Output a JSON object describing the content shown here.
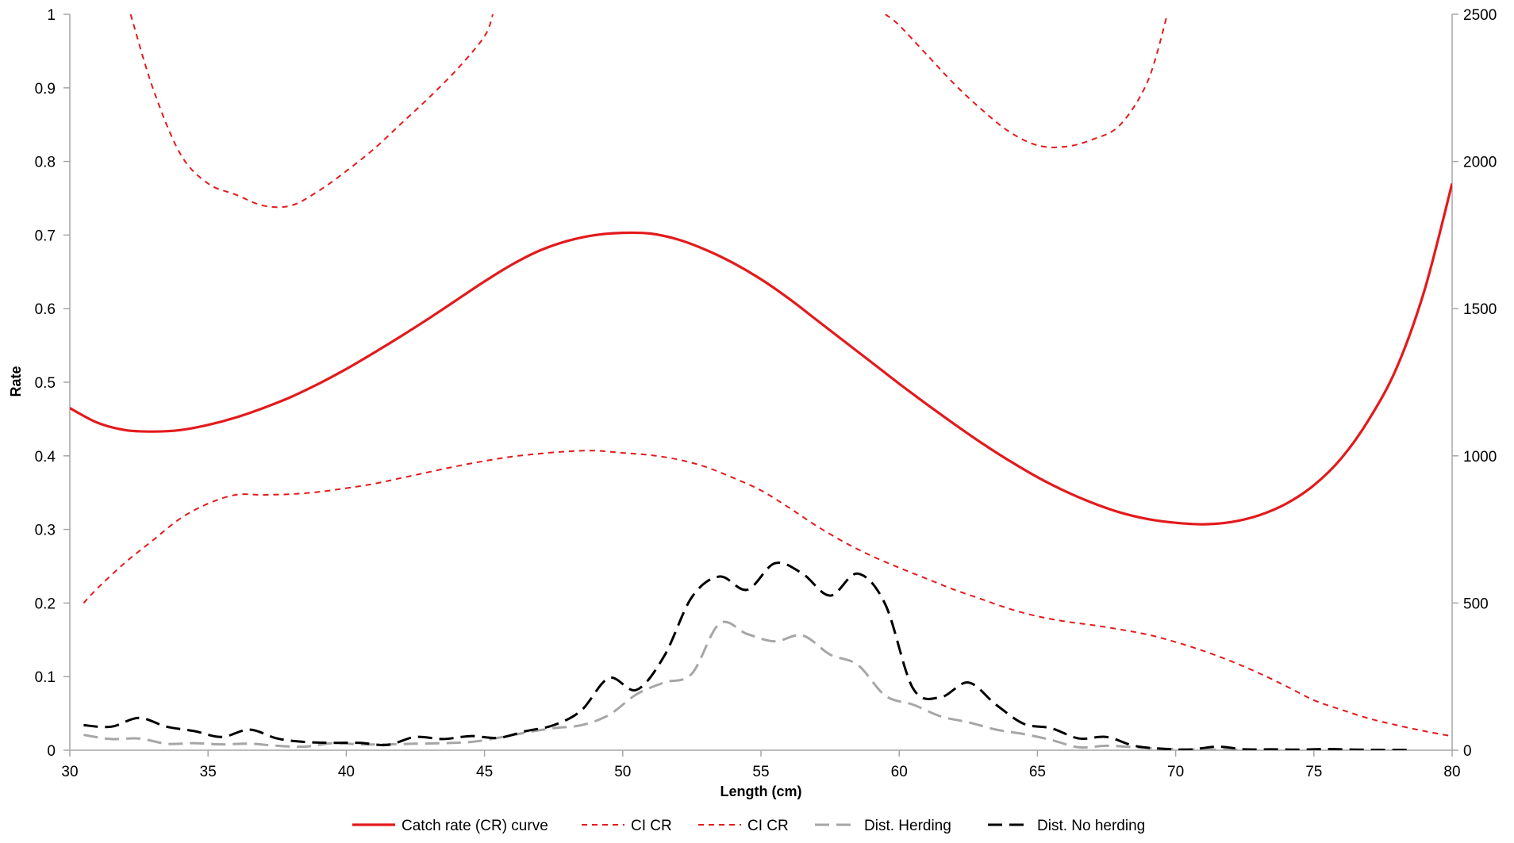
{
  "chart_data": {
    "type": "line",
    "title": "",
    "xlabel": "Length (cm)",
    "ylabel": "Rate",
    "y2label": "",
    "xlim": [
      30,
      80
    ],
    "ylim": [
      0,
      1
    ],
    "y2lim": [
      0,
      2500
    ],
    "grid": false,
    "legend_position": "bottom",
    "x_ticks": [
      "30",
      "35",
      "40",
      "45",
      "50",
      "55",
      "60",
      "65",
      "70",
      "75",
      "80"
    ],
    "y_ticks": [
      "0",
      "0.1",
      "0.2",
      "0.3",
      "0.4",
      "0.5",
      "0.6",
      "0.7",
      "0.8",
      "0.9",
      "1"
    ],
    "y2_ticks": [
      "0",
      "500",
      "1000",
      "1500",
      "2000",
      "2500"
    ],
    "series": [
      {
        "name": "Catch rate (CR) curve",
        "axis": "left",
        "color": "#e31a1c",
        "style": "solid",
        "points": [
          [
            30,
            0.465
          ],
          [
            31,
            0.445
          ],
          [
            32,
            0.435
          ],
          [
            33,
            0.433
          ],
          [
            34,
            0.435
          ],
          [
            35,
            0.442
          ],
          [
            36,
            0.452
          ],
          [
            37,
            0.465
          ],
          [
            38,
            0.48
          ],
          [
            39,
            0.498
          ],
          [
            40,
            0.518
          ],
          [
            41,
            0.54
          ],
          [
            42,
            0.563
          ],
          [
            43,
            0.587
          ],
          [
            44,
            0.612
          ],
          [
            45,
            0.637
          ],
          [
            46,
            0.66
          ],
          [
            47,
            0.679
          ],
          [
            48,
            0.692
          ],
          [
            49,
            0.7
          ],
          [
            50,
            0.703
          ],
          [
            51,
            0.702
          ],
          [
            52,
            0.694
          ],
          [
            53,
            0.68
          ],
          [
            54,
            0.662
          ],
          [
            55,
            0.64
          ],
          [
            56,
            0.614
          ],
          [
            57,
            0.585
          ],
          [
            58,
            0.556
          ],
          [
            59,
            0.527
          ],
          [
            60,
            0.498
          ],
          [
            61,
            0.47
          ],
          [
            62,
            0.443
          ],
          [
            63,
            0.417
          ],
          [
            64,
            0.393
          ],
          [
            65,
            0.371
          ],
          [
            66,
            0.352
          ],
          [
            67,
            0.336
          ],
          [
            68,
            0.323
          ],
          [
            69,
            0.314
          ],
          [
            70,
            0.309
          ],
          [
            71,
            0.307
          ],
          [
            72,
            0.31
          ],
          [
            73,
            0.319
          ],
          [
            74,
            0.335
          ],
          [
            75,
            0.36
          ],
          [
            76,
            0.397
          ],
          [
            77,
            0.45
          ],
          [
            78,
            0.52
          ],
          [
            79,
            0.625
          ],
          [
            80,
            0.77
          ]
        ]
      },
      {
        "name": "CI CR",
        "axis": "left",
        "color": "#e31a1c",
        "style": "short-dash",
        "points": [
          [
            30.5,
            0.2
          ],
          [
            31,
            0.22
          ],
          [
            32,
            0.255
          ],
          [
            33,
            0.285
          ],
          [
            34,
            0.315
          ],
          [
            35,
            0.335
          ],
          [
            36,
            0.347
          ],
          [
            37,
            0.347
          ],
          [
            38,
            0.348
          ],
          [
            39,
            0.351
          ],
          [
            40,
            0.356
          ],
          [
            41,
            0.362
          ],
          [
            42,
            0.37
          ],
          [
            43,
            0.378
          ],
          [
            44,
            0.386
          ],
          [
            45,
            0.393
          ],
          [
            46,
            0.399
          ],
          [
            47,
            0.403
          ],
          [
            48,
            0.406
          ],
          [
            49,
            0.407
          ],
          [
            50,
            0.404
          ],
          [
            51,
            0.401
          ],
          [
            52,
            0.395
          ],
          [
            53,
            0.385
          ],
          [
            54,
            0.37
          ],
          [
            55,
            0.353
          ],
          [
            56,
            0.33
          ],
          [
            57,
            0.305
          ],
          [
            58,
            0.283
          ],
          [
            59,
            0.264
          ],
          [
            60,
            0.248
          ],
          [
            61,
            0.233
          ],
          [
            62,
            0.218
          ],
          [
            63,
            0.205
          ],
          [
            64,
            0.192
          ],
          [
            65,
            0.182
          ],
          [
            66,
            0.175
          ],
          [
            67,
            0.17
          ],
          [
            68,
            0.164
          ],
          [
            69,
            0.157
          ],
          [
            70,
            0.147
          ],
          [
            71,
            0.135
          ],
          [
            72,
            0.121
          ],
          [
            73,
            0.105
          ],
          [
            74,
            0.087
          ],
          [
            75,
            0.068
          ],
          [
            76,
            0.055
          ],
          [
            77,
            0.043
          ],
          [
            78,
            0.034
          ],
          [
            79,
            0.026
          ],
          [
            80,
            0.019
          ]
        ]
      },
      {
        "name": "CI CR",
        "axis": "left",
        "color": "#e31a1c",
        "style": "short-dash",
        "segments": [
          [
            [
              32.2,
              1.0
            ],
            [
              33,
              0.9
            ],
            [
              34,
              0.81
            ],
            [
              35,
              0.77
            ],
            [
              36,
              0.755
            ],
            [
              37,
              0.74
            ],
            [
              38,
              0.74
            ],
            [
              39,
              0.76
            ],
            [
              40,
              0.787
            ],
            [
              41,
              0.817
            ],
            [
              42,
              0.852
            ],
            [
              43,
              0.887
            ],
            [
              44,
              0.925
            ],
            [
              45,
              0.97
            ],
            [
              45.3,
              1.0
            ]
          ],
          [
            [
              59.5,
              1.0
            ],
            [
              60,
              0.985
            ],
            [
              61,
              0.945
            ],
            [
              62,
              0.905
            ],
            [
              63,
              0.87
            ],
            [
              64,
              0.84
            ],
            [
              65,
              0.822
            ],
            [
              66,
              0.82
            ],
            [
              67,
              0.83
            ],
            [
              68,
              0.85
            ],
            [
              69,
              0.91
            ],
            [
              69.7,
              1.0
            ]
          ]
        ]
      },
      {
        "name": "Dist. Herding",
        "axis": "right",
        "color": "#a6a6a6",
        "style": "long-dash",
        "points": [
          [
            30.5,
            52
          ],
          [
            31.5,
            38
          ],
          [
            32.5,
            40
          ],
          [
            33.5,
            22
          ],
          [
            34.5,
            24
          ],
          [
            35.5,
            20
          ],
          [
            36.5,
            22
          ],
          [
            37.5,
            15
          ],
          [
            38.5,
            12
          ],
          [
            39.5,
            24
          ],
          [
            40.5,
            20
          ],
          [
            41.5,
            20
          ],
          [
            42.5,
            22
          ],
          [
            43.5,
            24
          ],
          [
            44.5,
            28
          ],
          [
            45.5,
            42
          ],
          [
            46.5,
            60
          ],
          [
            47.5,
            75
          ],
          [
            48.5,
            85
          ],
          [
            49.5,
            120
          ],
          [
            50.5,
            190
          ],
          [
            51.5,
            230
          ],
          [
            52.5,
            260
          ],
          [
            53.5,
            430
          ],
          [
            54.5,
            395
          ],
          [
            55.5,
            370
          ],
          [
            56.5,
            390
          ],
          [
            57.5,
            325
          ],
          [
            58.5,
            290
          ],
          [
            59.5,
            185
          ],
          [
            60.5,
            155
          ],
          [
            61.5,
            115
          ],
          [
            62.5,
            95
          ],
          [
            63.5,
            70
          ],
          [
            64.5,
            55
          ],
          [
            65.5,
            35
          ],
          [
            66.5,
            10
          ],
          [
            67.5,
            15
          ],
          [
            68.5,
            10
          ],
          [
            69.5,
            5
          ],
          [
            70.5,
            3
          ],
          [
            71.5,
            2
          ],
          [
            72.5,
            1
          ]
        ]
      },
      {
        "name": "Dist. No herding",
        "axis": "right",
        "color": "#000000",
        "style": "long-dash",
        "points": [
          [
            30.5,
            85
          ],
          [
            31.5,
            80
          ],
          [
            32.5,
            110
          ],
          [
            33.5,
            80
          ],
          [
            34.5,
            65
          ],
          [
            35.5,
            45
          ],
          [
            36.5,
            70
          ],
          [
            37.5,
            40
          ],
          [
            38.5,
            28
          ],
          [
            39.5,
            25
          ],
          [
            40.5,
            25
          ],
          [
            41.5,
            18
          ],
          [
            42.5,
            45
          ],
          [
            43.5,
            38
          ],
          [
            44.5,
            48
          ],
          [
            45.5,
            42
          ],
          [
            46.5,
            65
          ],
          [
            47.5,
            85
          ],
          [
            48.5,
            135
          ],
          [
            49.5,
            245
          ],
          [
            50.5,
            205
          ],
          [
            51.5,
            320
          ],
          [
            52.5,
            520
          ],
          [
            53.5,
            590
          ],
          [
            54.5,
            545
          ],
          [
            55.5,
            635
          ],
          [
            56.5,
            600
          ],
          [
            57.5,
            525
          ],
          [
            58.5,
            600
          ],
          [
            59.5,
            495
          ],
          [
            60.5,
            210
          ],
          [
            61.5,
            180
          ],
          [
            62.5,
            230
          ],
          [
            63.5,
            155
          ],
          [
            64.5,
            90
          ],
          [
            65.5,
            75
          ],
          [
            66.5,
            40
          ],
          [
            67.5,
            45
          ],
          [
            68.5,
            15
          ],
          [
            69.5,
            5
          ],
          [
            70.5,
            2
          ],
          [
            71.5,
            12
          ],
          [
            72.5,
            3
          ],
          [
            73.5,
            3
          ],
          [
            74.5,
            2
          ],
          [
            75.5,
            4
          ],
          [
            76.5,
            2
          ],
          [
            77.5,
            1
          ],
          [
            78.5,
            1
          ]
        ]
      }
    ],
    "legend": [
      {
        "label": "Catch rate (CR) curve",
        "color": "#e31a1c",
        "style": "solid"
      },
      {
        "label": "CI CR",
        "color": "#e31a1c",
        "style": "short-dash"
      },
      {
        "label": "CI CR",
        "color": "#e31a1c",
        "style": "short-dash"
      },
      {
        "label": "Dist. Herding",
        "color": "#a6a6a6",
        "style": "long-dash"
      },
      {
        "label": "Dist. No herding",
        "color": "#000000",
        "style": "long-dash"
      }
    ]
  }
}
